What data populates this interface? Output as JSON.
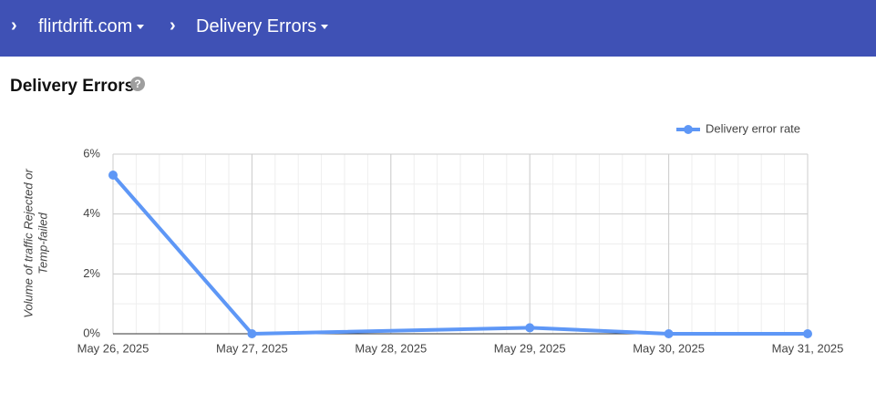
{
  "header": {
    "breadcrumbs": [
      "flirtdrift.com",
      "Delivery Errors"
    ]
  },
  "section_title": "Delivery Errors",
  "chart_data": {
    "type": "line",
    "y_label": [
      "Volume of traffic Rejected or",
      "Temp-failed"
    ],
    "x": [
      "May 26, 2025",
      "May 27, 2025",
      "May 29, 2025",
      "May 30, 2025",
      "May 31, 2025"
    ],
    "xlim": [
      "May 26, 2025",
      "May 31, 2025"
    ],
    "xticks": [
      "May 26, 2025",
      "May 27, 2025",
      "May 28, 2025",
      "May 29, 2025",
      "May 30, 2025",
      "May 31, 2025"
    ],
    "series": [
      {
        "name": "Delivery error rate",
        "color": "#5e97f6",
        "values": [
          5.3,
          0,
          0.2,
          0,
          0
        ]
      }
    ],
    "ylim": [
      0,
      6
    ],
    "yticks": [
      {
        "value": 0,
        "label": "0%"
      },
      {
        "value": 2,
        "label": "2%"
      },
      {
        "value": 4,
        "label": "4%"
      },
      {
        "value": 6,
        "label": "6%"
      }
    ],
    "grid": true,
    "legend": "top-right"
  }
}
